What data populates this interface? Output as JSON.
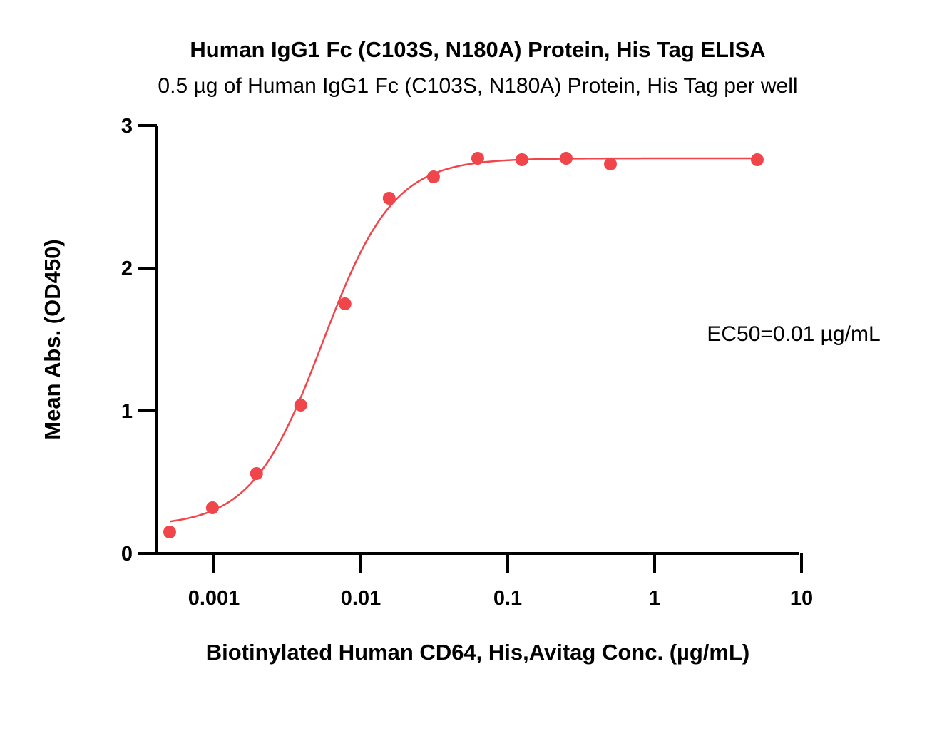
{
  "chart_data": {
    "type": "scatter",
    "title": "Human IgG1 Fc (C103S, N180A) Protein, His Tag ELISA",
    "subtitle": "0.5 µg of Human IgG1 Fc (C103S, N180A) Protein, His Tag per well",
    "xlabel": "Biotinylated Human CD64, His,Avitag Conc. (µg/mL)",
    "ylabel": "Mean Abs. (OD450)",
    "x_scale": "log",
    "xlim": [
      0.0004,
      10
    ],
    "ylim": [
      0,
      3
    ],
    "x_ticks": [
      {
        "value": 0.001,
        "label": "0.001"
      },
      {
        "value": 0.01,
        "label": "0.01"
      },
      {
        "value": 0.1,
        "label": "0.1"
      },
      {
        "value": 1,
        "label": "1"
      },
      {
        "value": 10,
        "label": "10"
      }
    ],
    "y_ticks": [
      {
        "value": 0,
        "label": "0"
      },
      {
        "value": 1,
        "label": "1"
      },
      {
        "value": 2,
        "label": "2"
      },
      {
        "value": 3,
        "label": "3"
      }
    ],
    "grid": false,
    "series": [
      {
        "color": "#f0454a",
        "points": [
          {
            "x": 0.0005,
            "y": 0.15
          },
          {
            "x": 0.000977,
            "y": 0.32
          },
          {
            "x": 0.00195,
            "y": 0.56
          },
          {
            "x": 0.0039,
            "y": 1.04
          },
          {
            "x": 0.0078,
            "y": 1.75
          },
          {
            "x": 0.0156,
            "y": 2.49
          },
          {
            "x": 0.03125,
            "y": 2.64
          },
          {
            "x": 0.0625,
            "y": 2.77
          },
          {
            "x": 0.125,
            "y": 2.76
          },
          {
            "x": 0.25,
            "y": 2.77
          },
          {
            "x": 0.5,
            "y": 2.73
          },
          {
            "x": 5,
            "y": 2.76
          }
        ],
        "fit": {
          "bottom": 0.19,
          "top": 2.77,
          "ec50": 0.0055,
          "hill": 1.8
        }
      }
    ],
    "annotations": [
      {
        "text": "EC50=0.01 µg/mL"
      }
    ]
  }
}
